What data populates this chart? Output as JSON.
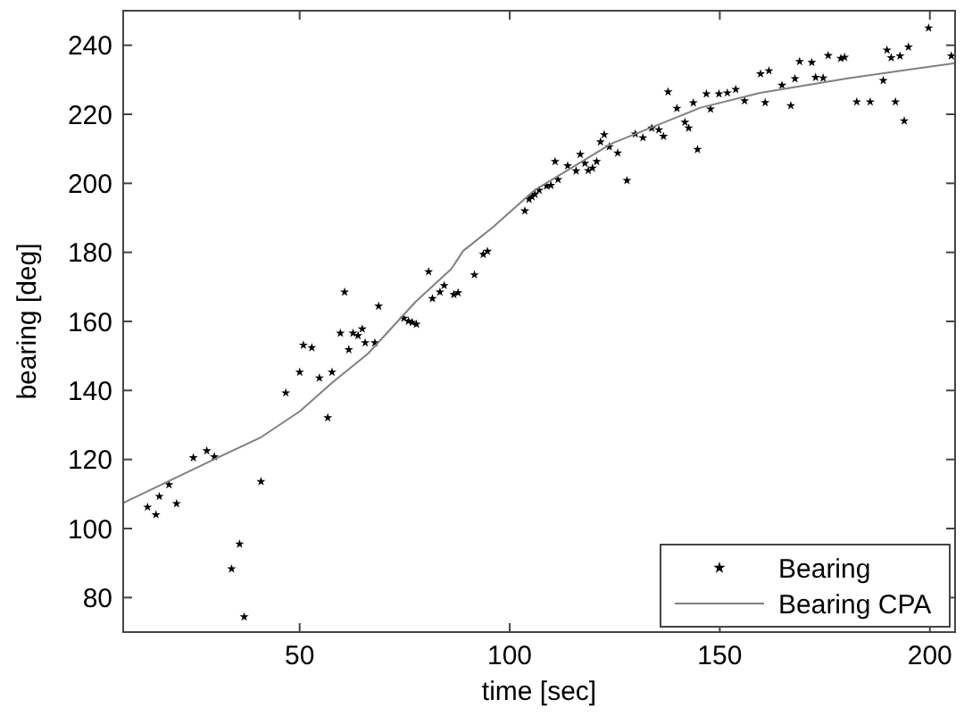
{
  "chart_data": {
    "type": "scatter",
    "xlabel": "time [sec]",
    "ylabel": "bearing [deg]",
    "xlim": [
      8,
      206
    ],
    "ylim": [
      70,
      250
    ],
    "xticks": [
      50,
      100,
      150,
      200
    ],
    "yticks": [
      80,
      100,
      120,
      140,
      160,
      180,
      200,
      220,
      240
    ],
    "grid": false,
    "legend": "bottom right",
    "marker": "star",
    "series": [
      {
        "name": "Bearing",
        "color": "#000000",
        "x": [
          13.8,
          15.8,
          16.6,
          18.9,
          20.7,
          24.7,
          27.9,
          29.7,
          33.8,
          35.7,
          36.8,
          40.8,
          46.7,
          50,
          50.9,
          52.9,
          54.7,
          56.7,
          57.7,
          59.7,
          60.7,
          61.7,
          62.7,
          63.9,
          64.9,
          65.6,
          67.9,
          68.8,
          74.8,
          75.9,
          76.8,
          77.8,
          80.7,
          81.6,
          83.4,
          84.4,
          86.7,
          87.7,
          91.6,
          93.7,
          94.7,
          103.6,
          104.6,
          105.3,
          106,
          107,
          108.8,
          109.8,
          111.5,
          110.8,
          113.8,
          115.8,
          116.8,
          117.9,
          118.7,
          119.7,
          120.7,
          121.6,
          122.5,
          123.7,
          125.7,
          127.9,
          129.9,
          131.7,
          133.8,
          135.5,
          136.6,
          137.7,
          139.8,
          141.7,
          142.6,
          143.7,
          144.7,
          146.8,
          147.8,
          149.8,
          151.8,
          153.8,
          155.9,
          159.7,
          160.8,
          161.7,
          164.8,
          166.9,
          167.9,
          169,
          171.9,
          172.8,
          174.6,
          175.8,
          178.8,
          179.7,
          182.6,
          185.8,
          188.9,
          189.8,
          190.8,
          191.8,
          192.9,
          193.9,
          194.9,
          199.7,
          205.1
        ],
        "values": [
          106.2,
          104,
          109.3,
          112.7,
          107.2,
          120.5,
          122.5,
          120.8,
          88.3,
          95.5,
          74.4,
          113.6,
          139.3,
          145.3,
          153.1,
          152.4,
          143.6,
          132.1,
          145.3,
          156.6,
          168.5,
          151.8,
          156.6,
          155.9,
          157.8,
          153.8,
          153.8,
          164.4,
          160.9,
          160.1,
          159.7,
          159.2,
          174.4,
          166.6,
          168.5,
          170.4,
          167.8,
          168.3,
          173.5,
          179.4,
          180.3,
          192,
          195.4,
          196.1,
          196.8,
          198,
          199.2,
          199.4,
          201.1,
          206.3,
          205.1,
          203.6,
          208.4,
          205.8,
          203.7,
          204.4,
          206.3,
          212,
          214.1,
          210.6,
          208.8,
          200.8,
          214.3,
          213.2,
          216,
          215.5,
          213.6,
          226.5,
          221.7,
          217.7,
          216,
          223.3,
          209.8,
          225.9,
          221.5,
          225.9,
          226.2,
          227.2,
          223.9,
          231.7,
          223.4,
          232.6,
          228.4,
          222.5,
          230.3,
          235.3,
          235,
          230.7,
          230.5,
          237,
          236.2,
          236.5,
          223.6,
          223.6,
          229.8,
          238.6,
          236.4,
          223.6,
          236.9,
          218.1,
          239.5,
          245,
          236.9
        ]
      },
      {
        "name": "Bearing CPA",
        "type": "line",
        "color": "#808080",
        "marker": "none",
        "line_style": "solid",
        "x": [
          8,
          29.6,
          40.9,
          50.1,
          57.9,
          66.3,
          77.6,
          86.1,
          88.9,
          96,
          105.9,
          124.2,
          145.4,
          159.6,
          180.8,
          206
        ],
        "values": [
          107.4,
          120,
          126.5,
          134,
          142.4,
          150.7,
          165.7,
          175.2,
          180.4,
          187.3,
          198,
          211.5,
          221.9,
          226.2,
          230.5,
          234.8
        ]
      }
    ]
  }
}
